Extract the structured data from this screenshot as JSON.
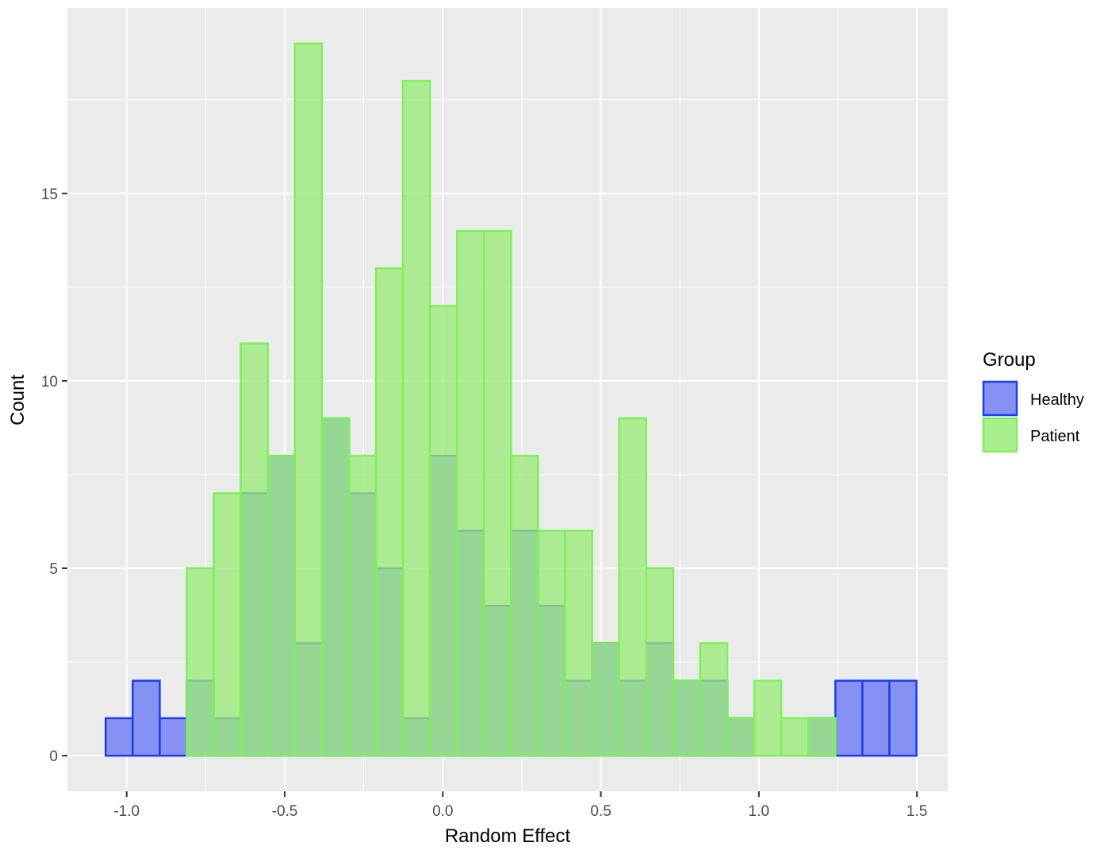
{
  "chart_data": {
    "type": "bar",
    "title": "",
    "xlabel": "Random Effect",
    "ylabel": "Count",
    "xlim": [
      -1.1875,
      1.5975
    ],
    "ylim": [
      -0.95,
      19.95
    ],
    "x_ticks": [
      -1.0,
      -0.5,
      0.0,
      0.5,
      1.0,
      1.5
    ],
    "x_tick_labels": [
      "-1.0",
      "-0.5",
      "0.0",
      "0.5",
      "1.0",
      "1.5"
    ],
    "y_ticks": [
      0,
      5,
      10,
      15
    ],
    "y_tick_labels": [
      "0",
      "5",
      "10",
      "15"
    ],
    "grid": true,
    "bin_width": 0.0855,
    "bin_start": -1.0665,
    "legend": {
      "title": "Group",
      "placement": "right"
    },
    "series": [
      {
        "name": "Healthy",
        "fill": "#8791F3",
        "stroke": "#1A3DF2",
        "values": [
          1,
          2,
          1,
          2,
          1,
          7,
          8,
          3,
          9,
          7,
          5,
          1,
          8,
          6,
          4,
          6,
          4,
          2,
          3,
          2,
          3,
          2,
          2,
          1,
          0,
          0,
          1,
          2,
          2,
          2
        ]
      },
      {
        "name": "Patient",
        "fill": "#9BEB7A",
        "stroke": "#7CF257",
        "values": [
          0,
          0,
          0,
          5,
          7,
          11,
          8,
          19,
          9,
          8,
          13,
          18,
          12,
          14,
          14,
          8,
          6,
          6,
          3,
          9,
          5,
          2,
          3,
          1,
          2,
          1,
          1,
          0,
          0,
          0
        ]
      }
    ],
    "overlap_color": "#74BF8D"
  }
}
